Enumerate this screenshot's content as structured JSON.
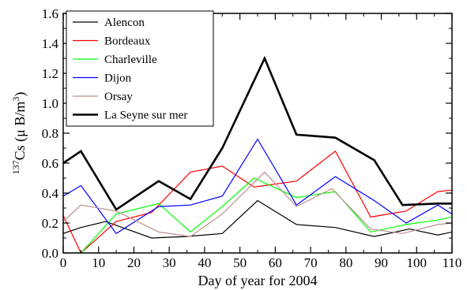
{
  "chart_data": {
    "type": "line",
    "xlabel": "Day of year for 2004",
    "ylabel": {
      "sup": "137",
      "main": "Cs (μ B/m",
      "unit_sup": "3",
      "close": ")"
    },
    "xlim": [
      0,
      110
    ],
    "ylim": [
      0,
      1.6
    ],
    "xticks": [
      "0",
      "10",
      "20",
      "30",
      "40",
      "50",
      "60",
      "70",
      "80",
      "90",
      "100",
      "110"
    ],
    "yticks": [
      "0.0",
      "0.2",
      "0.4",
      "0.6",
      "0.8",
      "1.0",
      "1.2",
      "1.4",
      "1.6"
    ],
    "grid": false,
    "legend_position": "top-left",
    "series": [
      {
        "name": "Alencon",
        "color": "#000000",
        "width": 1.2,
        "x": [
          0,
          5,
          12,
          25,
          35,
          45,
          55,
          66,
          77,
          88,
          98,
          106,
          110
        ],
        "y": [
          0.13,
          0.17,
          0.21,
          0.1,
          0.11,
          0.13,
          0.35,
          0.19,
          0.17,
          0.11,
          0.16,
          0.12,
          0.14
        ]
      },
      {
        "name": "Bordeaux",
        "color": "#ff0000",
        "width": 1.2,
        "x": [
          0,
          5,
          15,
          25,
          36,
          45,
          54,
          66,
          77,
          87,
          97,
          106,
          110
        ],
        "y": [
          0.25,
          0.0,
          0.21,
          0.27,
          0.54,
          0.58,
          0.44,
          0.48,
          0.68,
          0.24,
          0.28,
          0.41,
          0.42
        ]
      },
      {
        "name": "Charleville",
        "color": "#00ff00",
        "width": 1.2,
        "x": [
          0,
          5,
          15,
          27,
          36,
          45,
          54,
          66,
          77,
          87,
          97,
          106,
          110
        ],
        "y": [
          0.0,
          0.0,
          0.26,
          0.33,
          0.14,
          0.31,
          0.5,
          0.37,
          0.41,
          0.14,
          0.19,
          0.22,
          0.24
        ]
      },
      {
        "name": "Dijon",
        "color": "#0000ff",
        "width": 1.2,
        "x": [
          0,
          5,
          15,
          27,
          36,
          45,
          55,
          66,
          77,
          88,
          97,
          106,
          110
        ],
        "y": [
          0.38,
          0.45,
          0.13,
          0.31,
          0.32,
          0.38,
          0.76,
          0.32,
          0.51,
          0.35,
          0.2,
          0.32,
          0.26
        ]
      },
      {
        "name": "Orsay",
        "color": "#bc8f8f",
        "width": 1.2,
        "x": [
          0,
          5,
          15,
          27,
          36,
          45,
          57,
          66,
          76,
          87,
          96,
          106,
          110
        ],
        "y": [
          0.21,
          0.32,
          0.28,
          0.14,
          0.11,
          0.26,
          0.54,
          0.31,
          0.43,
          0.16,
          0.13,
          0.19,
          0.2
        ]
      },
      {
        "name": "La Seyne sur mer",
        "color": "#000000",
        "width": 2.6,
        "x": [
          0,
          5,
          15,
          27,
          36,
          45,
          57,
          66,
          77,
          88,
          96,
          106,
          110
        ],
        "y": [
          0.6,
          0.68,
          0.29,
          0.48,
          0.36,
          0.7,
          1.3,
          0.79,
          0.77,
          0.62,
          0.32,
          0.33,
          0.33
        ]
      }
    ]
  }
}
